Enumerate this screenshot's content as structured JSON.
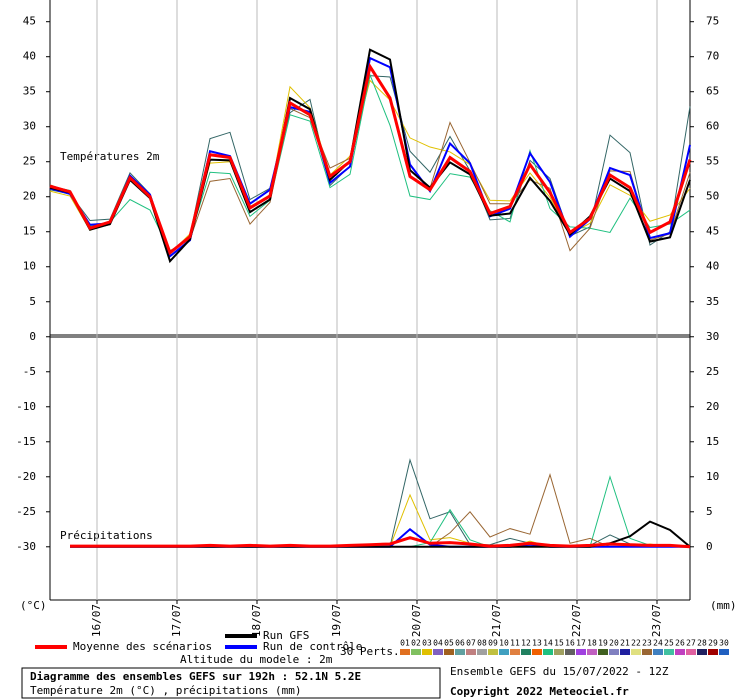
{
  "chart_data": {
    "type": "line",
    "temperature_label": "Températures 2m",
    "precip_label": "Précipitations",
    "y_unit": "(°C)",
    "y2_unit": "(mm)",
    "xlim": [
      0,
      32
    ],
    "xticks": [
      {
        "value": 2.35,
        "label": "16/07"
      },
      {
        "value": 6.35,
        "label": "17/07"
      },
      {
        "value": 10.35,
        "label": "18/07"
      },
      {
        "value": 14.35,
        "label": "19/07"
      },
      {
        "value": 18.35,
        "label": "20/07"
      },
      {
        "value": 22.35,
        "label": "21/07"
      },
      {
        "value": 26.35,
        "label": "22/07"
      },
      {
        "value": 30.35,
        "label": "23/07"
      }
    ],
    "ylim": [
      -37.6,
      48.1
    ],
    "yticks": [
      45,
      40,
      35,
      30,
      25,
      20,
      15,
      10,
      5,
      0,
      -5,
      -10,
      -15,
      -20,
      -25,
      -30
    ],
    "y2lim": [
      -7.6,
      78.1
    ],
    "y2ticks": [
      75,
      70,
      65,
      60,
      55,
      50,
      45,
      40,
      35,
      30,
      25,
      20,
      15,
      10,
      5,
      0
    ],
    "grid": true,
    "series": [
      {
        "color": "#336666",
        "values": [
          21,
          20.4,
          16.6,
          16.8,
          23.4,
          20.4,
          11.8,
          14.5,
          28.3,
          29.2,
          19.6,
          21.2,
          32,
          33.9,
          21.6,
          24.4,
          37.3,
          37.1,
          26.5,
          23.5,
          28.6,
          23.7,
          16.7,
          16.9,
          25.2,
          22.6,
          14.4,
          15.7,
          28.8,
          26.3,
          13.1,
          15,
          32.9
        ],
        "precip": [
          null,
          0,
          0,
          0,
          0,
          0,
          0,
          0,
          0,
          0,
          0,
          0,
          0,
          0,
          0,
          0,
          0,
          0,
          12.4,
          4,
          5,
          0.3,
          0.3,
          1.2,
          0.5,
          0,
          0,
          0.2,
          1.7,
          0.4,
          0,
          0,
          0
        ]
      },
      {
        "color": "#e0c000",
        "values": [
          20.8,
          20.1,
          15.2,
          16.5,
          23.1,
          19.7,
          11.9,
          14.7,
          24.8,
          25,
          18.6,
          20.3,
          35.7,
          32.7,
          23.1,
          25.8,
          36.6,
          33.8,
          28.4,
          27.1,
          26.4,
          24.6,
          19.5,
          19.4,
          23.4,
          19.9,
          14.7,
          16.2,
          21.7,
          20.2,
          16.5,
          17.4,
          21.2
        ],
        "precip": [
          null,
          0,
          0,
          0,
          0,
          0,
          0,
          0,
          0,
          0,
          0,
          0,
          0,
          0,
          0,
          0,
          0,
          0,
          7.4,
          1,
          1.3,
          0.5,
          0,
          0,
          0.8,
          0,
          0,
          0,
          0,
          0,
          0.4,
          0,
          0
        ]
      },
      {
        "color": "#20c080",
        "values": [
          21.5,
          20.9,
          15.8,
          16.4,
          19.6,
          18.1,
          12.2,
          14.3,
          23.5,
          23.3,
          17.2,
          19.5,
          31.7,
          30.8,
          21.3,
          23.2,
          37.4,
          30.2,
          20.1,
          19.6,
          23.3,
          22.8,
          18,
          16.4,
          26.6,
          18.3,
          15.7,
          15.5,
          14.9,
          19.8,
          15.6,
          16.1,
          18.1
        ],
        "precip": [
          null,
          0,
          0,
          0,
          0,
          0,
          0,
          0,
          0,
          0,
          0,
          0,
          0,
          0,
          0,
          0,
          0,
          0,
          0,
          0.6,
          5.3,
          1,
          0,
          0,
          0,
          0,
          0,
          0,
          10,
          1.2,
          0.2,
          0,
          0
        ]
      },
      {
        "color": "#996633",
        "values": [
          21.7,
          20.7,
          15.4,
          16,
          22.9,
          20.1,
          12.3,
          13.9,
          22.2,
          22.6,
          16.1,
          19.2,
          32.6,
          31.3,
          24.1,
          25.5,
          38.6,
          33.9,
          22.7,
          21.2,
          30.6,
          24.9,
          19,
          19,
          22.4,
          21.2,
          12.3,
          15.5,
          23.7,
          23.6,
          13.8,
          14.7,
          23.5
        ],
        "precip": [
          null,
          0,
          0,
          0,
          0,
          0,
          0,
          0,
          0,
          0,
          0,
          0,
          0,
          0,
          0,
          0,
          0,
          0,
          0,
          0,
          2,
          5,
          1.4,
          2.6,
          1.8,
          10.3,
          0.5,
          1.2,
          0,
          0,
          0,
          0,
          0
        ]
      },
      {
        "name": "Run de contrôle",
        "color": "#0000ff",
        "values": [
          21.2,
          20.4,
          16,
          16.2,
          23,
          20.3,
          11.5,
          13.8,
          26.5,
          25.8,
          19,
          21,
          32.8,
          32.1,
          22,
          24.3,
          39.8,
          38.5,
          24.6,
          20.8,
          27.6,
          24.8,
          17.2,
          18.3,
          26.2,
          22.1,
          14.3,
          16.8,
          24.1,
          23.1,
          14.1,
          14.8,
          27.4
        ],
        "precip": [
          null,
          0,
          0,
          0,
          0,
          0,
          0,
          0,
          0,
          0,
          0,
          0,
          0,
          0,
          0,
          0,
          0,
          0,
          2.5,
          0.3,
          0,
          0,
          0,
          0,
          0.3,
          0,
          0,
          0,
          0,
          0,
          0,
          0,
          0
        ]
      },
      {
        "name": "Run GFS",
        "color": "#000000",
        "values": [
          21.3,
          20.6,
          15.3,
          16.1,
          22.4,
          19.8,
          10.8,
          13.9,
          25.3,
          25.2,
          17.8,
          19.6,
          34.1,
          32.5,
          22.4,
          25.1,
          41,
          39.6,
          23.8,
          21.3,
          24.9,
          23.2,
          17.3,
          17.6,
          22.7,
          19.4,
          14.6,
          17.2,
          22.6,
          20.8,
          13.6,
          14.2,
          22.4
        ],
        "precip": [
          null,
          0,
          0,
          0,
          0,
          0,
          0,
          0,
          0,
          0,
          0,
          0,
          0,
          0,
          0,
          0,
          0,
          0,
          0,
          0,
          0,
          0,
          0,
          0,
          0,
          0,
          0,
          0,
          0.5,
          1.5,
          3.6,
          2.4,
          0
        ]
      },
      {
        "name": "Moyenne des scénarios",
        "color": "#ff0000",
        "values": [
          21.5,
          20.7,
          15.5,
          16.4,
          22.7,
          20,
          12,
          14.3,
          26,
          25.6,
          18.4,
          20.1,
          33.4,
          31.7,
          22.9,
          25,
          38.6,
          34.1,
          22.9,
          21,
          25.6,
          23.6,
          17.6,
          18.6,
          24.6,
          20.6,
          14.9,
          16.9,
          23.1,
          21.3,
          14.9,
          16.4,
          25.3
        ],
        "precip": [
          null,
          0.1,
          0.1,
          0.1,
          0.1,
          0.1,
          0.1,
          0.1,
          0.2,
          0.1,
          0.2,
          0.1,
          0.2,
          0.1,
          0.1,
          0.2,
          0.3,
          0.4,
          1.3,
          0.5,
          0.6,
          0.4,
          0.1,
          0.2,
          0.5,
          0.2,
          0.1,
          0.2,
          0.4,
          0.3,
          0.2,
          0.2,
          0
        ]
      }
    ],
    "members_label": "30 Perts.",
    "members": [
      {
        "label": "01",
        "color": "#e07020"
      },
      {
        "label": "02",
        "color": "#80c060"
      },
      {
        "label": "03",
        "color": "#e0c000"
      },
      {
        "label": "04",
        "color": "#8060c0"
      },
      {
        "label": "05",
        "color": "#a06020"
      },
      {
        "label": "06",
        "color": "#60a0a0"
      },
      {
        "label": "07",
        "color": "#c08080"
      },
      {
        "label": "08",
        "color": "#a0a0a0"
      },
      {
        "label": "09",
        "color": "#c0c040"
      },
      {
        "label": "10",
        "color": "#40a0c0"
      },
      {
        "label": "11",
        "color": "#e08040"
      },
      {
        "label": "12",
        "color": "#208060"
      },
      {
        "label": "13",
        "color": "#f06000"
      },
      {
        "label": "14",
        "color": "#20c080"
      },
      {
        "label": "15",
        "color": "#a0a060"
      },
      {
        "label": "16",
        "color": "#606060"
      },
      {
        "label": "17",
        "color": "#a040e0"
      },
      {
        "label": "18",
        "color": "#c060c0"
      },
      {
        "label": "19",
        "color": "#406020"
      },
      {
        "label": "20",
        "color": "#8080c0"
      },
      {
        "label": "21",
        "color": "#2020a0"
      },
      {
        "label": "22",
        "color": "#e0e080"
      },
      {
        "label": "23",
        "color": "#996633"
      },
      {
        "label": "24",
        "color": "#4080c0"
      },
      {
        "label": "25",
        "color": "#40c0a0"
      },
      {
        "label": "26",
        "color": "#c040c0"
      },
      {
        "label": "27",
        "color": "#e060a0"
      },
      {
        "label": "28",
        "color": "#202060"
      },
      {
        "label": "29",
        "color": "#a00000"
      },
      {
        "label": "30",
        "color": "#2060c0"
      }
    ],
    "altitude_note": "Altitude du modele : 2m",
    "title": "Diagramme des ensembles GEFS sur 192h : 52.1N 5.2E",
    "subtitle": "Température 2m (°C) , précipitations (mm)",
    "run_info": "Ensemble GEFS du 15/07/2022 - 12Z",
    "copyright": "Copyright 2022 Meteociel.fr"
  }
}
